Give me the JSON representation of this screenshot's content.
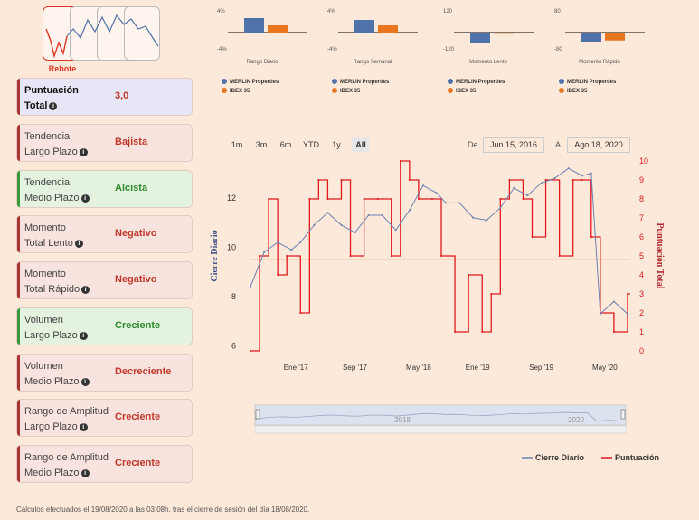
{
  "pattern": {
    "label": "Rebote"
  },
  "cards": [
    {
      "label1": "Puntuación",
      "label2": "Total",
      "value": "3,0",
      "status": "neutral"
    },
    {
      "label1": "Tendencia",
      "label2": "Largo Plazo",
      "value": "Bajista",
      "status": "neg"
    },
    {
      "label1": "Tendencia",
      "label2": "Medio Plazo",
      "value": "Alcista",
      "status": "pos"
    },
    {
      "label1": "Momento",
      "label2": "Total Lento",
      "value": "Negativo",
      "status": "neg"
    },
    {
      "label1": "Momento",
      "label2": "Total Rápido",
      "value": "Negativo",
      "status": "neg"
    },
    {
      "label1": "Volumen",
      "label2": "Largo Plazo",
      "value": "Creciente",
      "status": "pos"
    },
    {
      "label1": "Volumen",
      "label2": "Medio Plazo",
      "value": "Decreciente",
      "status": "neg"
    },
    {
      "label1": "Rango de Amplitud",
      "label2": "Largo Plazo",
      "value": "Creciente",
      "status": "neg"
    },
    {
      "label1": "Rango de Amplitud",
      "label2": "Medio Plazo",
      "value": "Creciente",
      "status": "neg"
    }
  ],
  "colors": {
    "neg": "#c0392b",
    "pos": "#2e8b2e",
    "neutral_bg": "#e6e6f6",
    "pos_bg": "#e4f2e0",
    "neg_bg": "#f9e3df",
    "merlin": "#4f72a8",
    "ibex": "#e8761e",
    "red": "#e0191e",
    "blue": "#6b7fb3"
  },
  "mini_charts": [
    {
      "title": "Rango Diario",
      "ymax": "4%",
      "ymin": "-4%",
      "merlin": 3.2,
      "ibex": 1.6,
      "range": 4
    },
    {
      "title": "Rango Semanal",
      "ymax": "4%",
      "ymin": "-4%",
      "merlin": 2.8,
      "ibex": 1.6,
      "range": 4
    },
    {
      "title": "Momento Lento",
      "ymax": "120",
      "ymin": "-120",
      "merlin": -70,
      "ibex": -8,
      "range": 120
    },
    {
      "title": "Momento Rápido",
      "ymax": "80",
      "ymin": "-80",
      "merlin": -40,
      "ibex": -35,
      "range": 80
    }
  ],
  "legend": {
    "merlin": "MERLIN Properties",
    "ibex": "IBEX 35"
  },
  "range_buttons": [
    "1m",
    "3m",
    "6m",
    "YTD",
    "1y",
    "All"
  ],
  "date_range": {
    "from_label": "De",
    "from": "Jun 15, 2016",
    "to_label": "A",
    "to": "Ago 18, 2020"
  },
  "chart_data": {
    "type": "line",
    "left_axis": {
      "label": "Cierre Diario",
      "ticks": [
        "12",
        "10",
        "8",
        "6"
      ],
      "ylim": [
        5.8,
        13.5
      ]
    },
    "right_axis": {
      "label": "Puntuación Total",
      "ticks": [
        "10",
        "9",
        "8",
        "7",
        "6",
        "5",
        "4",
        "3",
        "2",
        "1",
        "0"
      ],
      "ylim": [
        0,
        10
      ]
    },
    "x_ticks": [
      "Ene '17",
      "Sep '17",
      "May '18",
      "Ene '19",
      "Sep '19",
      "May '20"
    ],
    "reference_line_score": 4.8,
    "series": [
      {
        "name": "Cierre Diario",
        "axis": "left",
        "x": [
          2016.45,
          2016.6,
          2016.75,
          2016.9,
          2017.0,
          2017.15,
          2017.3,
          2017.45,
          2017.6,
          2017.75,
          2017.9,
          2018.05,
          2018.2,
          2018.35,
          2018.5,
          2018.6,
          2018.75,
          2018.9,
          2019.05,
          2019.2,
          2019.35,
          2019.5,
          2019.65,
          2019.8,
          2019.95,
          2020.1,
          2020.2,
          2020.3,
          2020.45,
          2020.6
        ],
        "values": [
          8.4,
          9.8,
          10.2,
          9.9,
          10.2,
          10.9,
          11.4,
          10.9,
          10.6,
          11.3,
          11.3,
          10.7,
          11.5,
          12.5,
          12.2,
          11.8,
          11.8,
          11.2,
          11.1,
          11.6,
          12.4,
          12.1,
          12.6,
          12.8,
          13.2,
          12.9,
          13.0,
          7.3,
          7.8,
          7.3
        ]
      },
      {
        "name": "Puntuación",
        "axis": "right",
        "x": [
          2016.45,
          2016.55,
          2016.65,
          2016.75,
          2016.85,
          2017.0,
          2017.1,
          2017.2,
          2017.3,
          2017.45,
          2017.55,
          2017.7,
          2017.85,
          2018.0,
          2018.1,
          2018.2,
          2018.3,
          2018.45,
          2018.55,
          2018.7,
          2018.85,
          2019.0,
          2019.1,
          2019.2,
          2019.3,
          2019.45,
          2019.55,
          2019.7,
          2019.85,
          2020.0,
          2020.1,
          2020.2,
          2020.3,
          2020.45,
          2020.6
        ],
        "values": [
          0,
          5,
          8,
          4,
          5,
          2,
          8,
          9,
          8,
          9,
          5,
          8,
          8,
          5,
          10,
          9,
          8,
          8,
          5,
          1,
          4,
          1,
          3,
          8,
          9,
          8,
          6,
          9,
          5,
          9,
          9,
          6,
          2,
          1,
          3
        ]
      }
    ],
    "legend": [
      "Cierre Diario",
      "Puntuación"
    ],
    "navigator": {
      "labels": [
        "2018",
        "2020"
      ]
    }
  },
  "footer": "Cálculos efectuados el 19/08/2020 a las 03:08h. tras el cierre de sesión del día 18/08/2020."
}
